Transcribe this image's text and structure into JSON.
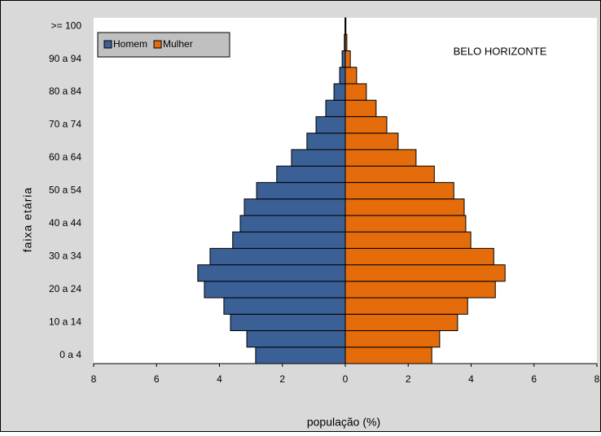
{
  "chart_data": {
    "type": "pyramid",
    "title": "BELO HORIZONTE",
    "xlabel": "população (%)",
    "ylabel": "faixa etária",
    "categories": [
      "0 a 4",
      null,
      "10 a 14",
      null,
      "20 a 24",
      null,
      "30 a 34",
      null,
      "40 a 44",
      null,
      "50 a 54",
      null,
      "60 a 64",
      null,
      "70 a 74",
      null,
      "80 a 84",
      null,
      "90 a 94",
      null,
      ">= 100"
    ],
    "series": [
      {
        "name": "Homem",
        "color": "#3b6096",
        "values": [
          -2.85,
          -3.13,
          -3.65,
          -3.86,
          -4.48,
          -4.69,
          -4.3,
          -3.58,
          -3.34,
          -3.21,
          -2.82,
          -2.18,
          -1.71,
          -1.22,
          -0.93,
          -0.62,
          -0.36,
          -0.18,
          -0.1,
          -0.03,
          -0.01
        ]
      },
      {
        "name": "Mulher",
        "color": "#e46c0a",
        "values": [
          2.75,
          3.0,
          3.57,
          3.89,
          4.77,
          5.08,
          4.72,
          3.99,
          3.83,
          3.78,
          3.45,
          2.83,
          2.25,
          1.68,
          1.32,
          0.98,
          0.67,
          0.36,
          0.16,
          0.05,
          0.02
        ]
      }
    ],
    "xlim": [
      -8,
      8
    ],
    "xticks": [
      {
        "value": -8,
        "label": "8"
      },
      {
        "value": -6,
        "label": "6"
      },
      {
        "value": -4,
        "label": "4"
      },
      {
        "value": -2,
        "label": "2"
      },
      0,
      2,
      4,
      6,
      8
    ],
    "legend": "upper left"
  }
}
